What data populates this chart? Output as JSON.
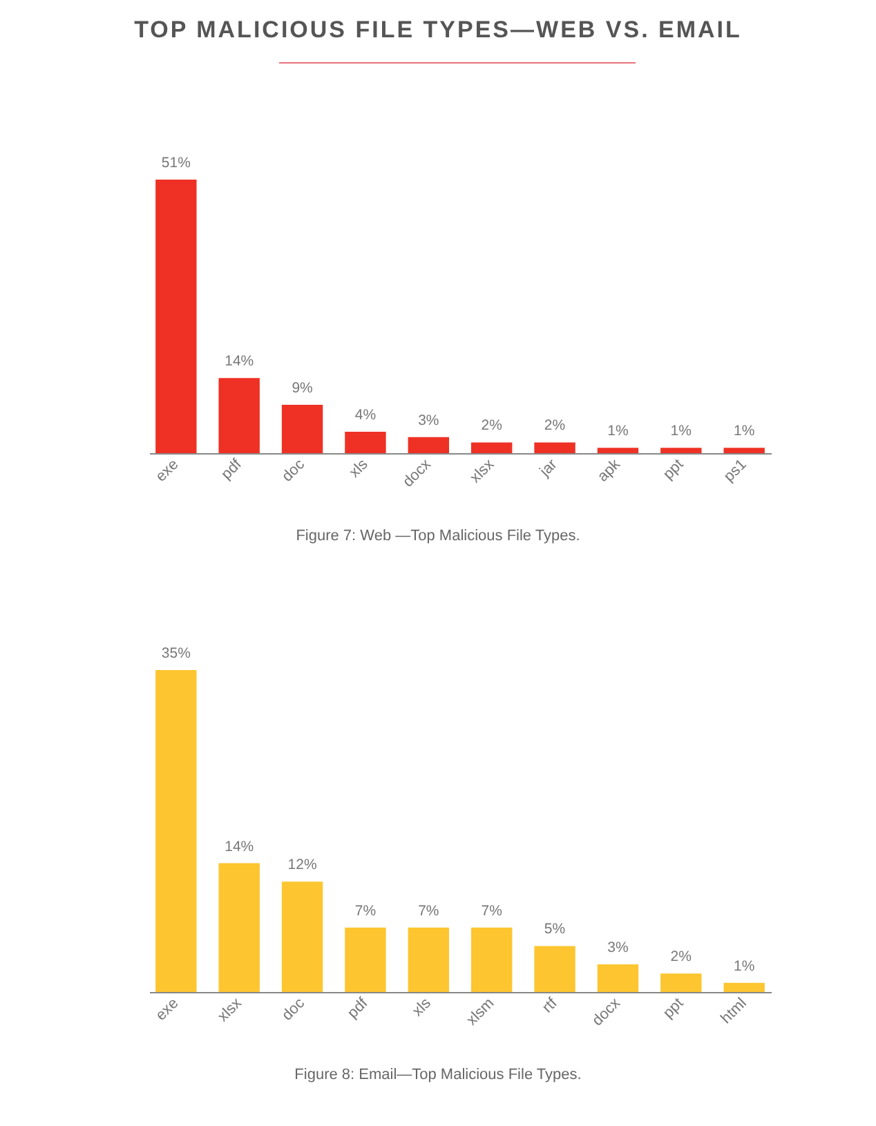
{
  "chart_data": [
    {
      "type": "bar",
      "title": "TOP MALICIOUS FILE TYPES—WEB VS. EMAIL",
      "categories": [
        "exe",
        "pdf",
        "doc",
        "xls",
        "docx",
        "xlsx",
        "jar",
        "apk",
        "ppt",
        "ps1"
      ],
      "values": [
        51,
        14,
        9,
        4,
        3,
        2,
        2,
        1,
        1,
        1
      ],
      "value_labels": [
        "51%",
        "14%",
        "9%",
        "4%",
        "3%",
        "2%",
        "2%",
        "1%",
        "1%",
        "1%"
      ],
      "color": "#ee3124",
      "tick_labels": "x",
      "annotations": [
        "Figure 7: Web —Top Malicious File Types."
      ]
    },
    {
      "type": "bar",
      "categories": [
        "exe",
        "xlsx",
        "doc",
        "pdf",
        "xls",
        "xlsm",
        "rtf",
        "docx",
        "ppt",
        "html"
      ],
      "values": [
        35,
        14,
        12,
        7,
        7,
        7,
        5,
        3,
        2,
        1
      ],
      "value_labels": [
        "35%",
        "14%",
        "12%",
        "7%",
        "7%",
        "7%",
        "5%",
        "3%",
        "2%",
        "1%"
      ],
      "color": "#fdc52f",
      "tick_labels": "x",
      "annotations": [
        "Figure 8: Email—Top Malicious File Types."
      ]
    }
  ]
}
